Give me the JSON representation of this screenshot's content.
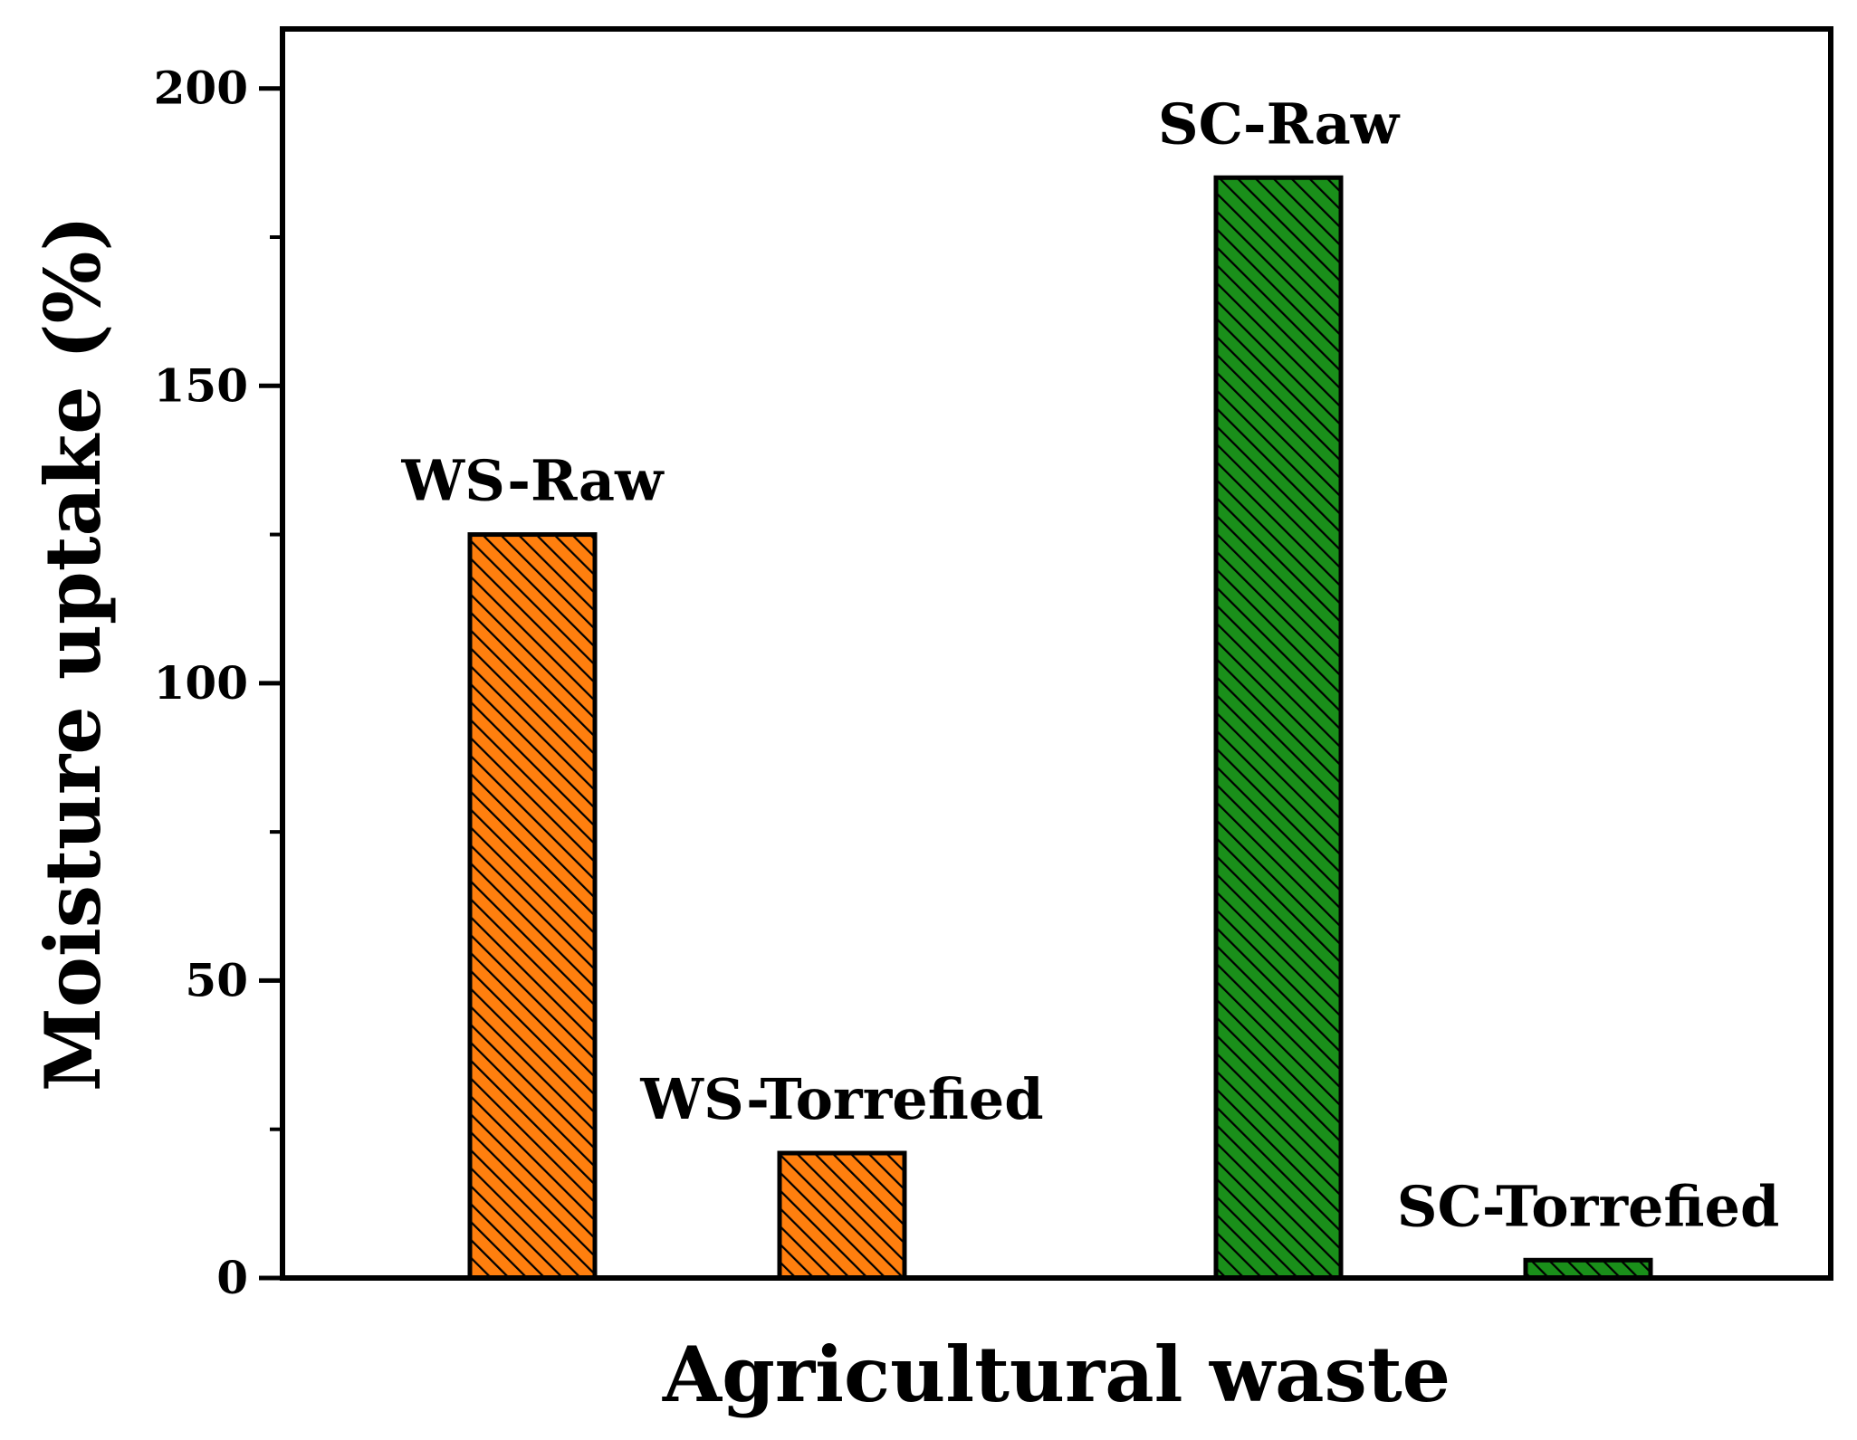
{
  "chart_data": {
    "type": "bar",
    "title": "",
    "xlabel": "Agricultural waste",
    "ylabel": "Moisture uptake (%)",
    "ylim": [
      0,
      210
    ],
    "yticks": [
      0,
      50,
      100,
      150,
      200
    ],
    "y_minor_step": 25,
    "grid": false,
    "categories": [
      "WS-Raw",
      "WS-Torrefied",
      "SC-Raw",
      "SC-Torrefied"
    ],
    "values": [
      125,
      21,
      185,
      3
    ],
    "colors": [
      "#ff7f0e",
      "#ff7f0e",
      "#1a8f1a",
      "#1a8f1a"
    ],
    "hatch": "diagonal"
  }
}
